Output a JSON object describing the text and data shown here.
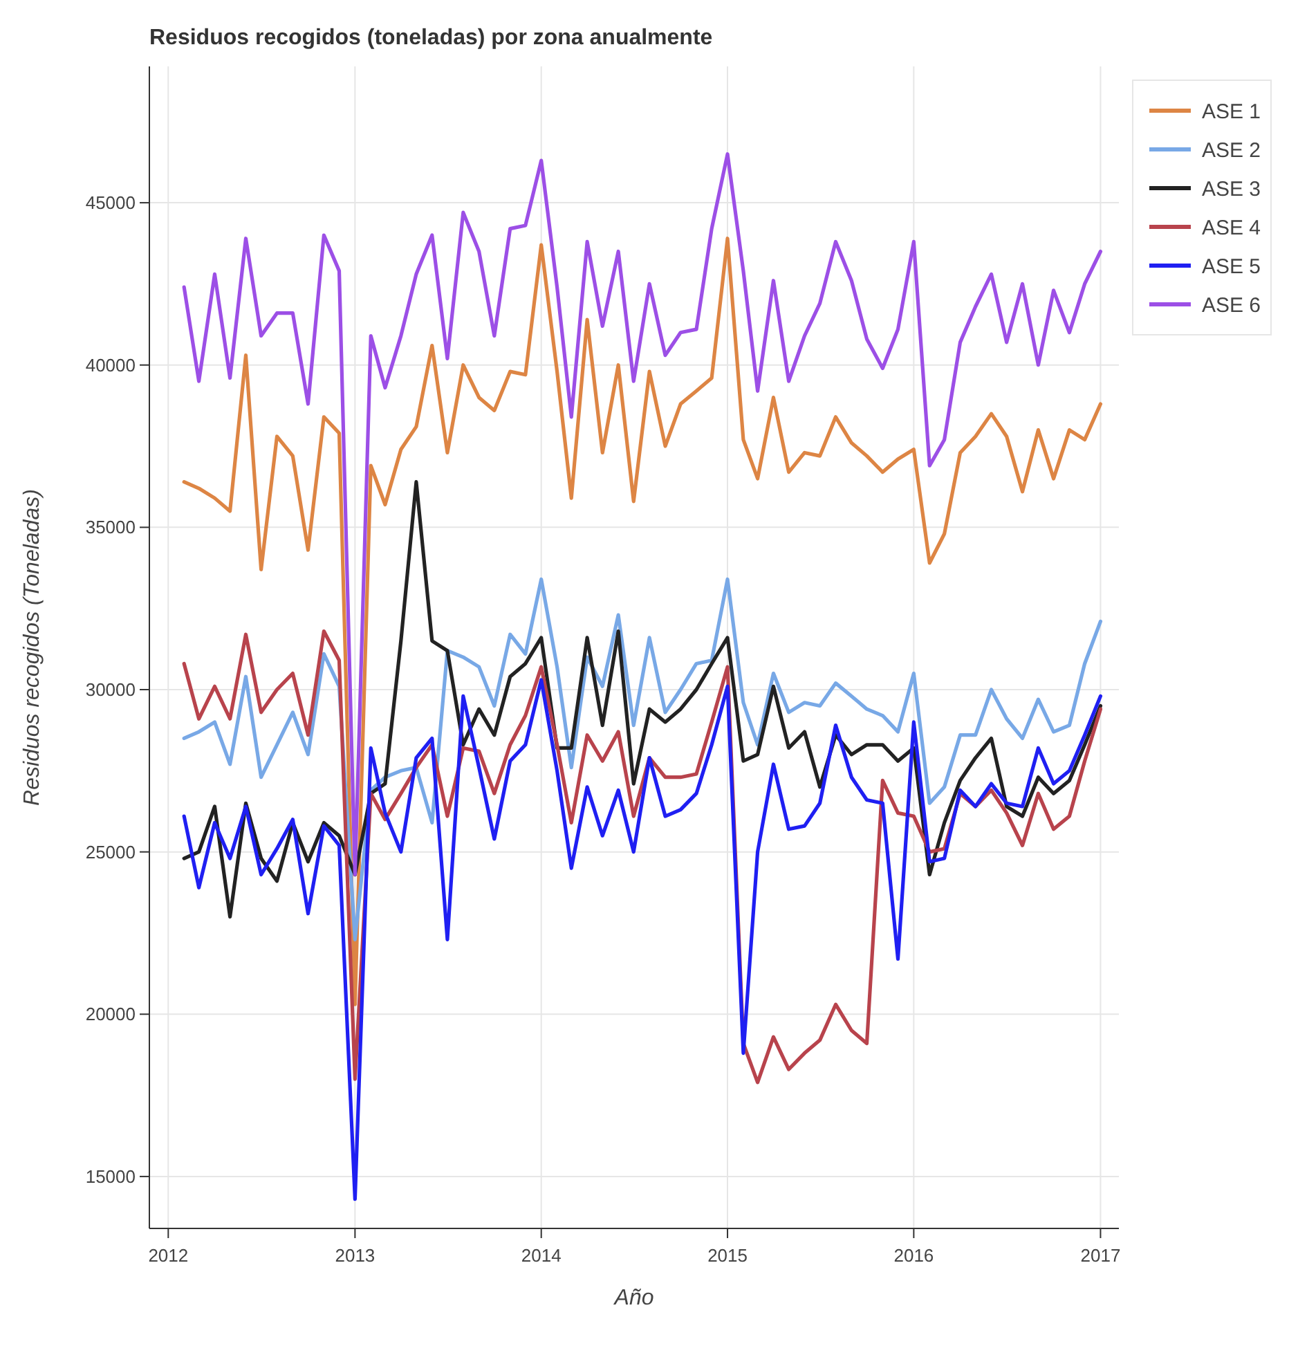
{
  "chart_data": {
    "type": "line",
    "title": "Residuos recogidos (toneladas) por zona anualmente",
    "xlabel": "Año",
    "ylabel": "Residuos recogidos (Toneladas)",
    "x": [
      "2012-02",
      "2012-03",
      "2012-04",
      "2012-05",
      "2012-06",
      "2012-07",
      "2012-08",
      "2012-09",
      "2012-10",
      "2012-11",
      "2012-12",
      "2013-01",
      "2013-02",
      "2013-03",
      "2013-04",
      "2013-05",
      "2013-06",
      "2013-07",
      "2013-08",
      "2013-09",
      "2013-10",
      "2013-11",
      "2013-12",
      "2014-01",
      "2014-02",
      "2014-03",
      "2014-04",
      "2014-05",
      "2014-06",
      "2014-07",
      "2014-08",
      "2014-09",
      "2014-10",
      "2014-11",
      "2014-12",
      "2015-01",
      "2015-02",
      "2015-03",
      "2015-04",
      "2015-05",
      "2015-06",
      "2015-07",
      "2015-08",
      "2015-09",
      "2015-10",
      "2015-11",
      "2015-12",
      "2016-01",
      "2016-02",
      "2016-03",
      "2016-04",
      "2016-05",
      "2016-06",
      "2016-07",
      "2016-08",
      "2016-09",
      "2016-10",
      "2016-11",
      "2016-12",
      "2017-01"
    ],
    "series": [
      {
        "name": "ASE 1",
        "color": "#dd8544",
        "values": [
          36400,
          36200,
          35900,
          35500,
          40300,
          33700,
          37800,
          37200,
          34300,
          38400,
          37900,
          20300,
          36900,
          35700,
          37400,
          38100,
          40600,
          37300,
          40000,
          39000,
          38600,
          39800,
          39700,
          43700,
          39800,
          35900,
          41400,
          37300,
          40000,
          35800,
          39800,
          37500,
          38800,
          39200,
          39600,
          43900,
          37700,
          36500,
          39000,
          36700,
          37300,
          37200,
          38400,
          37600,
          37200,
          36700,
          37100,
          37400,
          33900,
          34800,
          37300,
          37800,
          38500,
          37800,
          36100,
          38000,
          36500,
          38000,
          37700,
          38800
        ]
      },
      {
        "name": "ASE 2",
        "color": "#78a8e6",
        "values": [
          28500,
          28700,
          29000,
          27700,
          30400,
          27300,
          28300,
          29300,
          28000,
          31100,
          30100,
          22300,
          26900,
          27300,
          27500,
          27600,
          25900,
          31200,
          31000,
          30700,
          29500,
          31700,
          31100,
          33400,
          30700,
          27600,
          31000,
          30100,
          32300,
          28900,
          31600,
          29300,
          30000,
          30800,
          30900,
          33400,
          29600,
          28300,
          30500,
          29300,
          29600,
          29500,
          30200,
          29800,
          29400,
          29200,
          28700,
          30500,
          26500,
          27000,
          28600,
          28600,
          30000,
          29100,
          28500,
          29700,
          28700,
          28900,
          30800,
          32100
        ]
      },
      {
        "name": "ASE 3",
        "color": "#222222",
        "values": [
          24800,
          25000,
          26400,
          23000,
          26500,
          24800,
          24100,
          25900,
          24700,
          25900,
          25500,
          24300,
          26800,
          27100,
          31500,
          36400,
          31500,
          31200,
          28300,
          29400,
          28600,
          30400,
          30800,
          31600,
          28200,
          28200,
          31600,
          28900,
          31800,
          27100,
          29400,
          29000,
          29400,
          30000,
          30800,
          31600,
          27800,
          28000,
          30100,
          28200,
          28700,
          27000,
          28600,
          28000,
          28300,
          28300,
          27800,
          28200,
          24300,
          25900,
          27200,
          27900,
          28500,
          26400,
          26100,
          27300,
          26800,
          27200,
          28300,
          29500
        ]
      },
      {
        "name": "ASE 4",
        "color": "#b8434c",
        "values": [
          30800,
          29100,
          30100,
          29100,
          31700,
          29300,
          30000,
          30500,
          28600,
          31800,
          30900,
          18000,
          26800,
          26000,
          26800,
          27600,
          28300,
          26100,
          28200,
          28100,
          26800,
          28300,
          29200,
          30700,
          28300,
          25900,
          28600,
          27800,
          28700,
          26100,
          27900,
          27300,
          27300,
          27400,
          29000,
          30700,
          19100,
          17900,
          19300,
          18300,
          18800,
          19200,
          20300,
          19500,
          19100,
          27200,
          26200,
          26100,
          25000,
          25100,
          26800,
          26400,
          26900,
          26200,
          25200,
          26800,
          25700,
          26100,
          27800,
          29400
        ]
      },
      {
        "name": "ASE 5",
        "color": "#1f1ff2",
        "values": [
          26100,
          23900,
          25900,
          24800,
          26400,
          24300,
          25100,
          26000,
          23100,
          25800,
          25200,
          14300,
          28200,
          26200,
          25000,
          27900,
          28500,
          22300,
          29800,
          27600,
          25400,
          27800,
          28300,
          30300,
          27500,
          24500,
          27000,
          25500,
          26900,
          25000,
          27900,
          26100,
          26300,
          26800,
          28300,
          30100,
          18800,
          25000,
          27700,
          25700,
          25800,
          26500,
          28900,
          27300,
          26600,
          26500,
          21700,
          29000,
          24700,
          24800,
          26900,
          26400,
          27100,
          26500,
          26400,
          28200,
          27100,
          27500,
          28600,
          29800
        ]
      },
      {
        "name": "ASE 6",
        "color": "#9c4fe6",
        "values": [
          42400,
          39500,
          42800,
          39600,
          43900,
          40900,
          41600,
          41600,
          38800,
          44000,
          42900,
          24300,
          40900,
          39300,
          40900,
          42800,
          44000,
          40200,
          44700,
          43500,
          40900,
          44200,
          44300,
          46300,
          42400,
          38400,
          43800,
          41200,
          43500,
          39500,
          42500,
          40300,
          41000,
          41100,
          44200,
          46500,
          42900,
          39200,
          42600,
          39500,
          40900,
          41900,
          43800,
          42600,
          40800,
          39900,
          41100,
          43800,
          36900,
          37700,
          40700,
          41800,
          42800,
          40700,
          42500,
          40000,
          42300,
          41000,
          42500,
          43500
        ]
      }
    ],
    "xlim": [
      "2011-11-25",
      "2017-02-06"
    ],
    "xticks": [
      "2012",
      "2013",
      "2014",
      "2015",
      "2016",
      "2017"
    ],
    "ylim": [
      13400,
      49200
    ],
    "yticks": [
      15000,
      20000,
      25000,
      30000,
      35000,
      40000,
      45000
    ],
    "grid": true,
    "legend": "right",
    "line_style": "solid"
  }
}
